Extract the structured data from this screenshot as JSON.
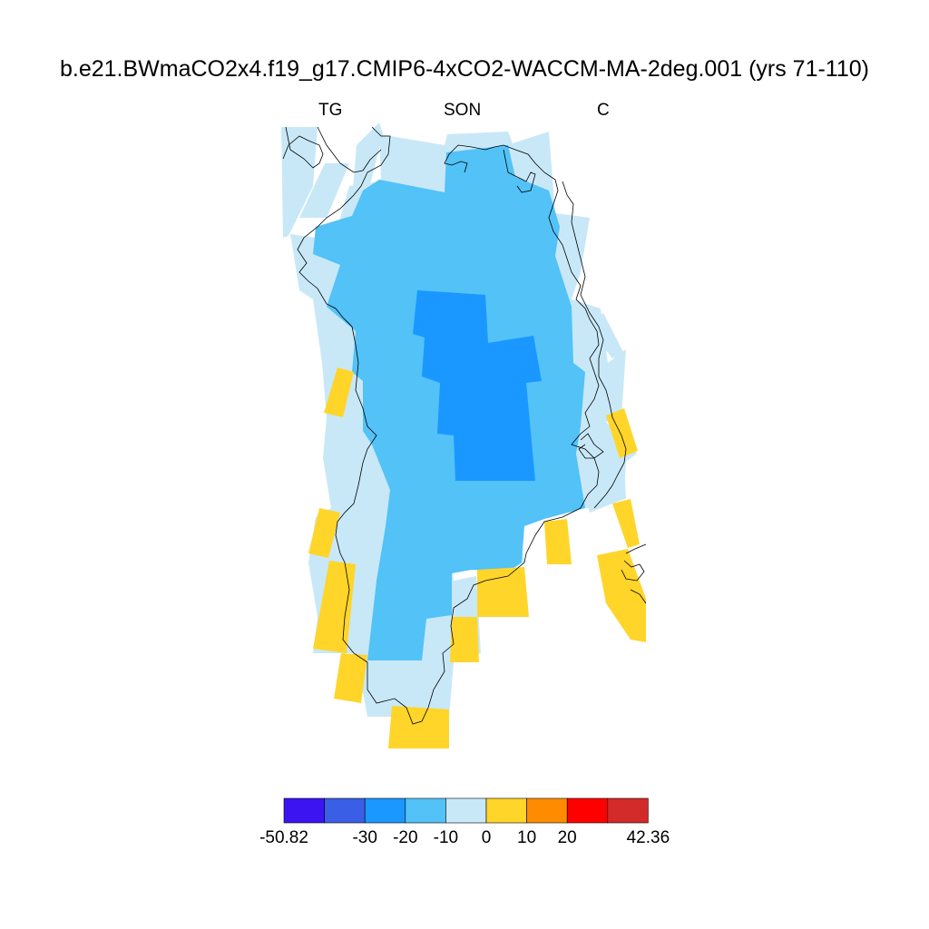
{
  "title": "b.e21.BWmaCO2x4.f19_g17.CMIP6-4xCO2-WACCM-MA-2deg.001 (yrs 71-110)",
  "subtitle_left": "TG",
  "subtitle_center": "SON",
  "subtitle_right": "C",
  "colors": {
    "bin_colors": [
      "#3c14f2",
      "#3a5ee6",
      "#1a98ff",
      "#52c2f7",
      "#c8e8f8",
      "#ffd52a",
      "#ff8c00",
      "#ff0000",
      "#d32a2a"
    ],
    "coastline": "#000000"
  },
  "colorbar": {
    "labels": [
      "-50.82",
      "-30",
      "-20",
      "-10",
      "0",
      "10",
      "20",
      "42.36"
    ],
    "min": -50.82,
    "max": 42.36,
    "levels": [
      -30,
      -20,
      -10,
      0,
      10,
      20
    ]
  }
}
